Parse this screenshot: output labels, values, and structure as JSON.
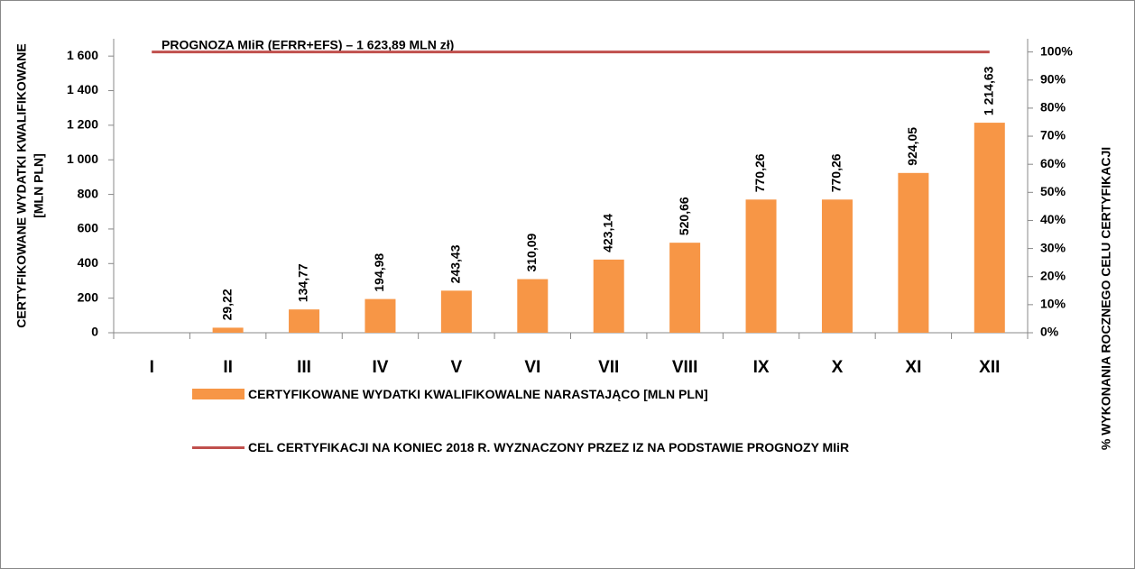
{
  "chart_data": {
    "type": "bar",
    "annotation": "PROGNOZA MIiR (EFRR+EFS) – 1 623,89 MLN zł)",
    "ylabel": [
      "CERTYFIKOWANE WYDATKI KWALIFIKOWANE",
      "[MLN PLN]"
    ],
    "y2label": "% WYKONANIA ROCZNEGO CELU CERTYFIKACJI",
    "categories": [
      "I",
      "II",
      "III",
      "IV",
      "V",
      "VI",
      "VII",
      "VIII",
      "IX",
      "X",
      "XI",
      "XII"
    ],
    "series": [
      {
        "name": "CERTYFIKOWANE WYDATKI KWALIFIKOWALNE NARASTAJĄCO [MLN PLN]",
        "type": "bar",
        "color": "#f79646",
        "values": [
          null,
          29.22,
          134.77,
          194.98,
          243.43,
          310.09,
          423.14,
          520.66,
          770.26,
          770.26,
          924.05,
          1214.63
        ],
        "value_labels": [
          null,
          "29,22",
          "134,77",
          "194,98",
          "243,43",
          "310,09",
          "423,14",
          "520,66",
          "770,26",
          "770,26",
          "924,05",
          "1 214,63"
        ]
      },
      {
        "name": "CEL CERTYFIKACJI NA KONIEC 2018 R. WYZNACZONY PRZEZ IZ NA PODSTAWIE PROGNOZY MIiR",
        "type": "line",
        "color": "#c0504d",
        "values": [
          1623.89,
          1623.89,
          1623.89,
          1623.89,
          1623.89,
          1623.89,
          1623.89,
          1623.89,
          1623.89,
          1623.89,
          1623.89,
          1623.89
        ]
      }
    ],
    "ylim": [
      0,
      1700
    ],
    "yticks": [
      0,
      200,
      400,
      600,
      800,
      {
        "value": 1000,
        "label": "1 000"
      },
      {
        "value": 1200,
        "label": "1 200"
      },
      {
        "value": 1400,
        "label": "1 400"
      },
      {
        "value": 1600,
        "label": "1 600"
      }
    ],
    "y2lim": [
      0,
      104.7
    ],
    "y2ticks": [
      {
        "value": 0,
        "label": "0%"
      },
      {
        "value": 10,
        "label": "10%"
      },
      {
        "value": 20,
        "label": "20%"
      },
      {
        "value": 30,
        "label": "30%"
      },
      {
        "value": 40,
        "label": "40%"
      },
      {
        "value": 50,
        "label": "50%"
      },
      {
        "value": 60,
        "label": "60%"
      },
      {
        "value": 70,
        "label": "70%"
      },
      {
        "value": 80,
        "label": "80%"
      },
      {
        "value": 90,
        "label": "90%"
      },
      {
        "value": 100,
        "label": "100%"
      }
    ]
  }
}
